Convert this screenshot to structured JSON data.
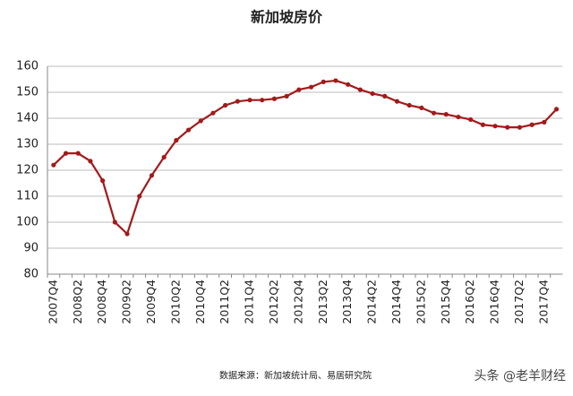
{
  "chart_data": {
    "type": "line",
    "title": "新加坡房价",
    "categories": [
      "2007Q4",
      null,
      "2008Q2",
      null,
      "2008Q4",
      null,
      "2009Q2",
      null,
      "2009Q4",
      null,
      "2010Q2",
      null,
      "2010Q4",
      null,
      "2011Q2",
      null,
      "2011Q4",
      null,
      "2012Q2",
      null,
      "2012Q4",
      null,
      "2013Q2",
      null,
      "2013Q4",
      null,
      "2014Q2",
      null,
      "2014Q4",
      null,
      "2015Q2",
      null,
      "2015Q4",
      null,
      "2016Q2",
      null,
      "2016Q4",
      null,
      "2017Q2",
      null,
      "2017Q4",
      null
    ],
    "series": [
      {
        "name": "新加坡房价",
        "color": "#a31a1a",
        "values": [
          122,
          126.5,
          126.5,
          123.5,
          116,
          100,
          95.5,
          110,
          118,
          125,
          131.5,
          135.5,
          139,
          142,
          145,
          146.5,
          147,
          147,
          147.5,
          148.5,
          151,
          152,
          154,
          154.5,
          153,
          151,
          149.5,
          148.5,
          146.5,
          145,
          144,
          142,
          141.5,
          140.5,
          139.5,
          137.5,
          137,
          136.5,
          136.5,
          137.5,
          138.5,
          143.5
        ]
      }
    ],
    "ylim": [
      80,
      160
    ],
    "yticks": [
      80,
      90,
      100,
      110,
      120,
      130,
      140,
      150,
      160
    ],
    "grid": true,
    "source": "数据来源：新加坡统计局、易居研究院",
    "watermark": "头条 @老羊财经"
  }
}
